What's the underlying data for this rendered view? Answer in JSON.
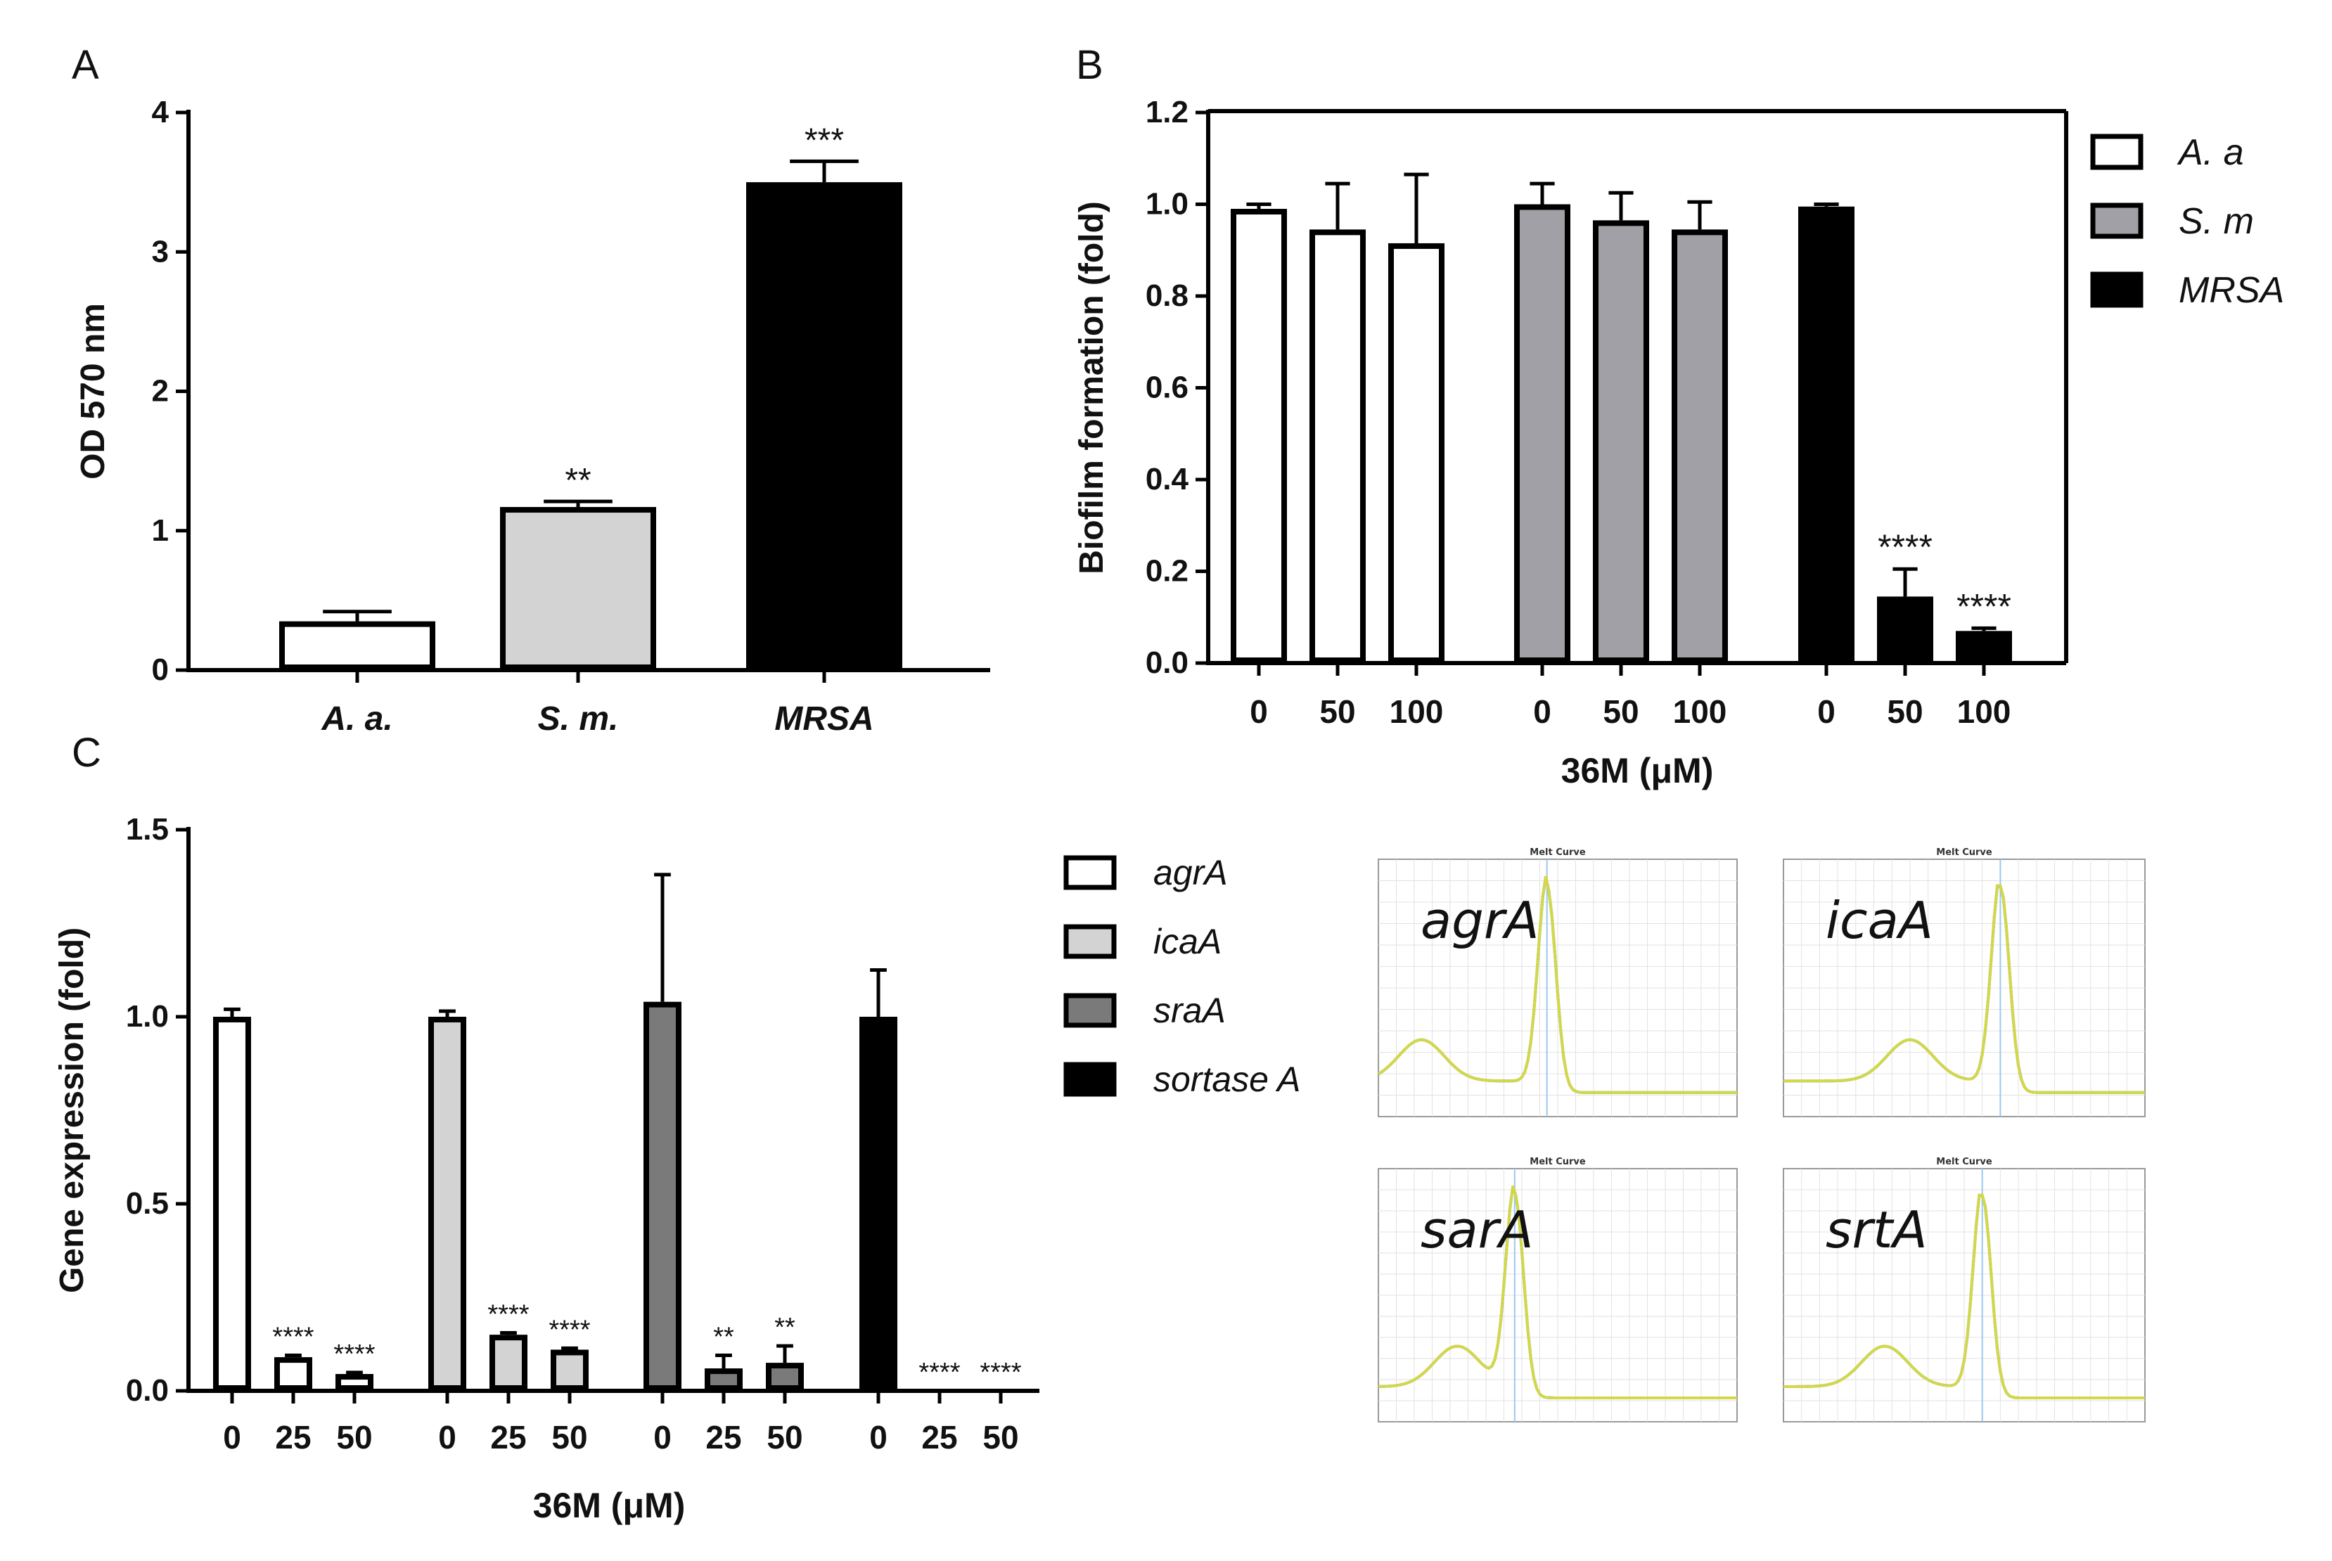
{
  "panels": {
    "a": "A",
    "b": "B",
    "c": "C"
  },
  "colors": {
    "white": "#ffffff",
    "light_gray": "#d3d3d3",
    "mid_gray": "#a0a0a6",
    "dark_gray": "#7a7a7a",
    "black": "#000000",
    "melt_green": "#2ecc71",
    "melt_cyan": "#5bc8e6",
    "melt_yellow": "#d6d64a"
  },
  "chart_data": [
    {
      "id": "A",
      "type": "bar",
      "title": "",
      "xlabel": "",
      "ylabel": "OD 570 nm",
      "ylim": [
        0,
        4
      ],
      "yticks": [
        "0",
        "1",
        "2",
        "3",
        "4"
      ],
      "categories": [
        "A. a.",
        "S. m.",
        "MRSA"
      ],
      "values": [
        0.35,
        1.17,
        3.5
      ],
      "errors": [
        0.07,
        0.04,
        0.15
      ],
      "fills": [
        "#ffffff",
        "#d3d3d3",
        "#000000"
      ],
      "annotations": [
        "",
        "**",
        "***"
      ]
    },
    {
      "id": "B",
      "type": "bar",
      "title": "",
      "xlabel": "36M (μM)",
      "ylabel": "Biofilm formation (fold)",
      "ylim": [
        0,
        1.2
      ],
      "yticks": [
        "0.0",
        "0.2",
        "0.4",
        "0.6",
        "0.8",
        "1.0",
        "1.2"
      ],
      "doses": [
        "0",
        "50",
        "100"
      ],
      "series": [
        {
          "name": "A. a",
          "fill": "#ffffff",
          "values": [
            0.99,
            0.945,
            0.915
          ],
          "errors": [
            0.01,
            0.1,
            0.15
          ],
          "annotations": [
            "",
            "",
            ""
          ]
        },
        {
          "name": "S. m",
          "fill": "#a0a0a6",
          "values": [
            1.0,
            0.965,
            0.945
          ],
          "errors": [
            0.045,
            0.06,
            0.06
          ],
          "annotations": [
            "",
            "",
            ""
          ]
        },
        {
          "name": "MRSA",
          "fill": "#000000",
          "values": [
            0.995,
            0.145,
            0.07
          ],
          "errors": [
            0.005,
            0.06,
            0.006
          ],
          "annotations": [
            "",
            "****",
            "****"
          ]
        }
      ],
      "legend": "right"
    },
    {
      "id": "C",
      "type": "bar",
      "title": "",
      "xlabel": "36M (μM)",
      "ylabel": "Gene expression (fold)",
      "ylim": [
        0,
        1.5
      ],
      "yticks": [
        "0.0",
        "0.5",
        "1.0",
        "1.5"
      ],
      "doses": [
        "0",
        "25",
        "50"
      ],
      "series": [
        {
          "name": "agrA",
          "fill": "#ffffff",
          "values": [
            1.0,
            0.09,
            0.045
          ],
          "errors": [
            0.02,
            0.005,
            0.004
          ],
          "annotations": [
            "",
            "****",
            "****"
          ]
        },
        {
          "name": "icaA",
          "fill": "#d3d3d3",
          "values": [
            1.0,
            0.15,
            0.11
          ],
          "errors": [
            0.015,
            0.005,
            0.004
          ],
          "annotations": [
            "",
            "****",
            "****"
          ]
        },
        {
          "name": "sraA",
          "fill": "#7a7a7a",
          "values": [
            1.04,
            0.06,
            0.075
          ],
          "errors": [
            0.34,
            0.035,
            0.045
          ],
          "annotations": [
            "",
            "**",
            "**"
          ]
        },
        {
          "name": "sortase A",
          "fill": "#000000",
          "values": [
            1.0,
            0.0,
            0.0
          ],
          "errors": [
            0.125,
            0.0,
            0.0
          ],
          "annotations": [
            "",
            "****",
            "****"
          ]
        }
      ],
      "legend": "right"
    }
  ],
  "melt_curves": {
    "plot_title": "Melt Curve",
    "panels": [
      {
        "gene": "agrA",
        "peak": 0.47,
        "sub_peak": 0.12
      },
      {
        "gene": "icaA",
        "peak": 0.6,
        "sub_peak": 0.35
      },
      {
        "gene": "sarA",
        "peak": 0.38,
        "sub_peak": 0.22
      },
      {
        "gene": "srtA",
        "peak": 0.55,
        "sub_peak": 0.28
      }
    ]
  }
}
